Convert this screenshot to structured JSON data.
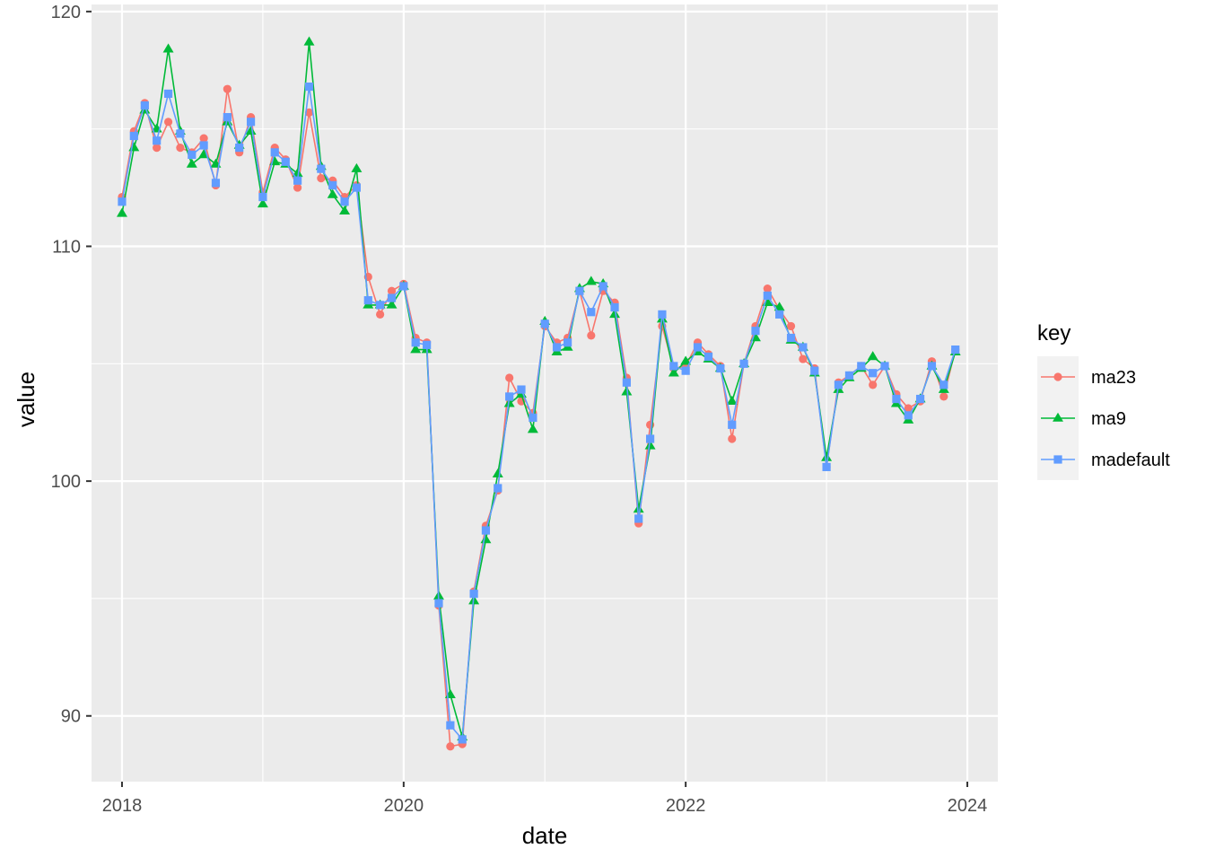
{
  "chart_data": {
    "type": "line",
    "xlabel": "date",
    "ylabel": "value",
    "x_ticks": [
      "2018",
      "2020",
      "2022",
      "2024"
    ],
    "y_ticks": [
      "90",
      "100",
      "110",
      "120"
    ],
    "xlim": [
      "2017-10-14",
      "2024-03-20"
    ],
    "ylim": [
      87.2,
      120.3
    ],
    "grid": true,
    "legend_title": "key",
    "legend_position": "right",
    "x": [
      "2018-01",
      "2018-02",
      "2018-03",
      "2018-04",
      "2018-05",
      "2018-06",
      "2018-07",
      "2018-08",
      "2018-09",
      "2018-10",
      "2018-11",
      "2018-12",
      "2019-01",
      "2019-02",
      "2019-03",
      "2019-04",
      "2019-05",
      "2019-06",
      "2019-07",
      "2019-08",
      "2019-09",
      "2019-10",
      "2019-11",
      "2019-12",
      "2020-01",
      "2020-02",
      "2020-03",
      "2020-04",
      "2020-05",
      "2020-06",
      "2020-07",
      "2020-08",
      "2020-09",
      "2020-10",
      "2020-11",
      "2020-12",
      "2021-01",
      "2021-02",
      "2021-03",
      "2021-04",
      "2021-05",
      "2021-06",
      "2021-07",
      "2021-08",
      "2021-09",
      "2021-10",
      "2021-11",
      "2021-12",
      "2022-01",
      "2022-02",
      "2022-03",
      "2022-04",
      "2022-05",
      "2022-06",
      "2022-07",
      "2022-08",
      "2022-09",
      "2022-10",
      "2022-11",
      "2022-12",
      "2023-01",
      "2023-02",
      "2023-03",
      "2023-04",
      "2023-05",
      "2023-06",
      "2023-07",
      "2023-08",
      "2023-09",
      "2023-10",
      "2023-11",
      "2023-12"
    ],
    "series": [
      {
        "name": "ma23",
        "color": "#F8766D",
        "marker": "circle",
        "values": [
          112.1,
          114.9,
          116.1,
          114.2,
          115.3,
          114.2,
          114.0,
          114.6,
          112.6,
          116.7,
          114.0,
          115.5,
          112.3,
          114.2,
          113.7,
          112.5,
          115.7,
          112.9,
          112.8,
          112.1,
          112.6,
          108.7,
          107.1,
          108.1,
          108.4,
          106.1,
          105.9,
          94.7,
          88.7,
          88.8,
          95.3,
          98.1,
          99.6,
          104.4,
          103.4,
          102.9,
          106.6,
          105.9,
          106.1,
          108.1,
          106.2,
          108.1,
          107.6,
          104.4,
          98.2,
          102.4,
          106.6,
          104.8,
          104.9,
          105.9,
          105.4,
          104.9,
          101.8,
          105.0,
          106.6,
          108.2,
          107.3,
          106.6,
          105.2,
          104.8,
          100.6,
          104.2,
          104.5,
          104.9,
          104.1,
          104.9,
          103.7,
          103.1,
          103.4,
          105.1,
          103.6,
          105.6
        ]
      },
      {
        "name": "ma9",
        "color": "#00BA38",
        "marker": "triangle",
        "values": [
          111.4,
          114.2,
          115.8,
          115.0,
          118.4,
          114.9,
          113.5,
          113.9,
          113.5,
          115.3,
          114.3,
          114.9,
          111.8,
          113.6,
          113.5,
          113.1,
          118.7,
          113.4,
          112.2,
          111.5,
          113.3,
          107.5,
          107.5,
          107.5,
          108.3,
          105.6,
          105.6,
          95.1,
          90.9,
          89.1,
          94.9,
          97.5,
          100.3,
          103.3,
          103.7,
          102.2,
          106.8,
          105.5,
          105.7,
          108.2,
          108.5,
          108.4,
          107.1,
          103.8,
          98.8,
          101.5,
          106.9,
          104.6,
          105.1,
          105.5,
          105.2,
          104.8,
          103.4,
          105.0,
          106.1,
          107.6,
          107.4,
          106.0,
          105.7,
          104.6,
          101.0,
          103.9,
          104.4,
          104.8,
          105.3,
          104.9,
          103.3,
          102.6,
          103.5,
          104.9,
          103.9,
          105.5
        ]
      },
      {
        "name": "madefault",
        "color": "#619CFF",
        "marker": "square",
        "values": [
          111.9,
          114.7,
          116.0,
          114.5,
          116.5,
          114.8,
          113.9,
          114.3,
          112.7,
          115.5,
          114.2,
          115.3,
          112.1,
          114.0,
          113.6,
          112.8,
          116.8,
          113.3,
          112.6,
          111.9,
          112.5,
          107.7,
          107.5,
          107.8,
          108.3,
          105.9,
          105.8,
          94.8,
          89.6,
          89.0,
          95.2,
          97.9,
          99.7,
          103.6,
          103.9,
          102.7,
          106.7,
          105.7,
          105.9,
          108.1,
          107.2,
          108.3,
          107.4,
          104.2,
          98.4,
          101.8,
          107.1,
          104.9,
          104.7,
          105.7,
          105.3,
          104.8,
          102.4,
          105.0,
          106.4,
          107.9,
          107.1,
          106.1,
          105.7,
          104.7,
          100.6,
          104.1,
          104.5,
          104.9,
          104.6,
          104.9,
          103.5,
          102.8,
          103.5,
          104.9,
          104.1,
          105.6
        ]
      }
    ]
  }
}
